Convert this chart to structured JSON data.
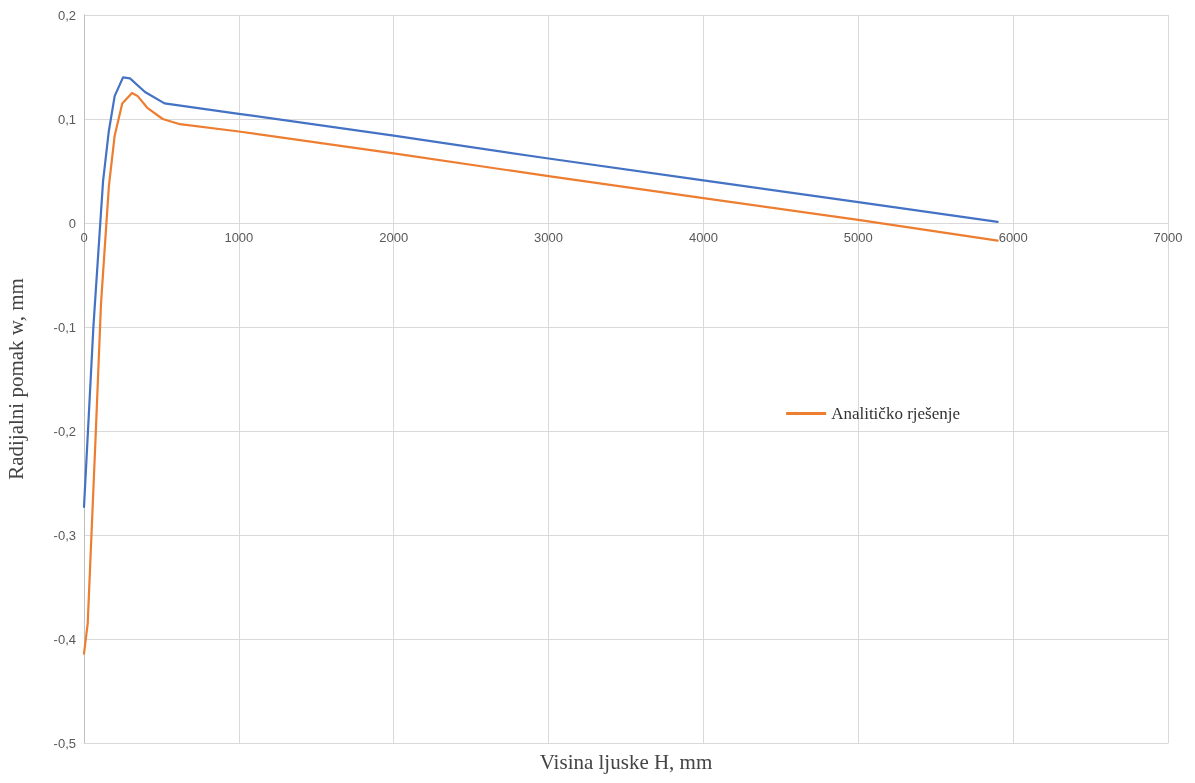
{
  "chart_data": {
    "type": "line",
    "xlabel": "Visina ljuske H, mm",
    "ylabel": "Radijalni pomak w, mm",
    "series": [
      {
        "color": "#4472c4",
        "x": [
          0,
          61,
          123,
          160,
          198,
          252,
          297,
          394,
          520,
          1000,
          2000,
          3000,
          4000,
          5000,
          5900
        ],
        "values": [
          -0.273,
          -0.099,
          0.04,
          0.088,
          0.122,
          0.14,
          0.139,
          0.126,
          0.115,
          0.105,
          0.084,
          0.062,
          0.041,
          0.02,
          0.001
        ]
      },
      {
        "name": "Analitičko rješenje",
        "color": "#ed7d31",
        "x": [
          0,
          24,
          74,
          110,
          161,
          198,
          247,
          310,
          347,
          407,
          508,
          620,
          1000,
          2000,
          3000,
          4000,
          5000,
          5900
        ],
        "values": [
          -0.414,
          -0.385,
          -0.209,
          -0.077,
          0.036,
          0.084,
          0.115,
          0.125,
          0.122,
          0.111,
          0.1,
          0.095,
          0.088,
          0.067,
          0.045,
          0.024,
          0.003,
          -0.017
        ]
      }
    ],
    "xlim": [
      0,
      7000
    ],
    "xticks": [
      0,
      1000,
      2000,
      3000,
      4000,
      5000,
      6000,
      7000
    ],
    "ylim": [
      -0.5,
      0.2
    ],
    "yticks": [
      {
        "value": -0.5,
        "label": "-0,5"
      },
      {
        "value": -0.4,
        "label": "-0,4"
      },
      {
        "value": -0.3,
        "label": "-0,3"
      },
      {
        "value": -0.2,
        "label": "-0,2"
      },
      {
        "value": -0.1,
        "label": "-0,1"
      },
      {
        "value": 0,
        "label": "0"
      },
      {
        "value": 0.1,
        "label": "0,1"
      },
      {
        "value": 0.2,
        "label": "0,2"
      }
    ],
    "grid": true,
    "legend": "right",
    "marker": "none",
    "line_style": "solid"
  }
}
